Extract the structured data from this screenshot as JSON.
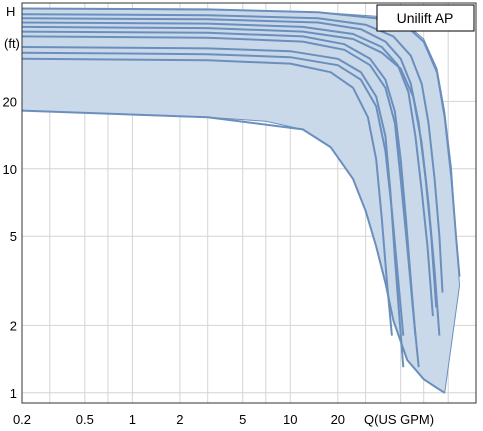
{
  "chart_data": {
    "type": "area",
    "title": "Unilift AP",
    "ylabel": "H",
    "ylabel_unit": "(ft)",
    "xlabel": "Q(US GPM)",
    "x_scale": "log",
    "y_scale": "log",
    "xlim": [
      0.2,
      150
    ],
    "ylim": [
      0.9,
      55
    ],
    "x_ticks": [
      {
        "value": 0.2,
        "label": "0.2"
      },
      {
        "value": 0.5,
        "label": "0.5"
      },
      {
        "value": 1,
        "label": "1"
      },
      {
        "value": 2,
        "label": "2"
      },
      {
        "value": 5,
        "label": "5"
      },
      {
        "value": 10,
        "label": "10"
      },
      {
        "value": 20,
        "label": "20"
      }
    ],
    "x_grid": [
      0.2,
      0.3,
      0.5,
      0.7,
      1,
      2,
      3,
      5,
      7,
      10,
      20,
      30,
      50,
      70,
      100
    ],
    "y_ticks": [
      {
        "value": 1,
        "label": "1"
      },
      {
        "value": 2,
        "label": "2"
      },
      {
        "value": 5,
        "label": "5"
      },
      {
        "value": 10,
        "label": "10"
      },
      {
        "value": 20,
        "label": "20"
      }
    ],
    "y_grid": [
      1,
      2,
      5,
      10,
      20
    ],
    "grid": true,
    "envelope": {
      "upper": [
        [
          0.2,
          52
        ],
        [
          1,
          51.5
        ],
        [
          5,
          51
        ],
        [
          15,
          50
        ],
        [
          35,
          48
        ],
        [
          55,
          44
        ],
        [
          70,
          38
        ],
        [
          85,
          28
        ],
        [
          95,
          18
        ],
        [
          105,
          10
        ],
        [
          110,
          6
        ],
        [
          115,
          4
        ],
        [
          118,
          3
        ]
      ],
      "lower": [
        [
          0.2,
          18.2
        ],
        [
          0.5,
          17.8
        ],
        [
          1,
          17.5
        ],
        [
          3,
          17
        ],
        [
          7,
          16.3
        ],
        [
          12,
          15
        ],
        [
          18,
          12.5
        ],
        [
          25,
          9
        ],
        [
          30,
          6.5
        ],
        [
          35,
          4.5
        ],
        [
          40,
          3.1
        ],
        [
          45,
          2.1
        ],
        [
          55,
          1.4
        ],
        [
          70,
          1.15
        ],
        [
          85,
          1.05
        ],
        [
          95,
          1.0
        ]
      ]
    },
    "series": [
      {
        "values": [
          [
            0.2,
            52
          ],
          [
            3,
            51.5
          ],
          [
            15,
            50
          ],
          [
            35,
            47
          ],
          [
            55,
            43
          ],
          [
            70,
            37
          ],
          [
            85,
            27
          ],
          [
            95,
            17
          ],
          [
            105,
            9
          ],
          [
            112,
            5
          ],
          [
            118,
            3.3
          ]
        ]
      },
      {
        "values": [
          [
            0.2,
            49
          ],
          [
            3,
            48.5
          ],
          [
            15,
            47
          ],
          [
            30,
            44
          ],
          [
            45,
            39
          ],
          [
            58,
            32
          ],
          [
            68,
            24
          ],
          [
            75,
            16
          ],
          [
            82,
            9
          ],
          [
            88,
            5
          ],
          [
            92,
            2.8
          ]
        ]
      },
      {
        "values": [
          [
            0.2,
            47
          ],
          [
            3,
            46.5
          ],
          [
            15,
            45
          ],
          [
            28,
            42
          ],
          [
            40,
            37
          ],
          [
            50,
            31
          ],
          [
            58,
            24
          ],
          [
            65,
            16
          ],
          [
            72,
            9
          ],
          [
            78,
            5
          ],
          [
            84,
            2.4
          ]
        ]
      },
      {
        "values": [
          [
            0.2,
            45
          ],
          [
            3,
            44.5
          ],
          [
            12,
            43
          ],
          [
            25,
            40
          ],
          [
            38,
            35
          ],
          [
            48,
            29
          ],
          [
            56,
            22
          ],
          [
            62,
            14
          ],
          [
            68,
            8
          ],
          [
            74,
            4.5
          ],
          [
            80,
            2.2
          ]
        ]
      },
      {
        "values": [
          [
            0.2,
            43
          ],
          [
            3,
            42.5
          ],
          [
            12,
            41
          ],
          [
            25,
            38
          ],
          [
            38,
            33
          ],
          [
            50,
            28
          ],
          [
            60,
            21
          ],
          [
            68,
            13
          ],
          [
            75,
            7
          ],
          [
            82,
            3.5
          ],
          [
            88,
            1.8
          ]
        ]
      },
      {
        "values": [
          [
            0.2,
            41
          ],
          [
            3,
            40.5
          ],
          [
            12,
            39
          ],
          [
            22,
            36
          ],
          [
            32,
            31
          ],
          [
            40,
            25
          ],
          [
            46,
            18
          ],
          [
            50,
            11
          ],
          [
            54,
            6
          ],
          [
            58,
            3.2
          ],
          [
            62,
            1.8
          ]
        ]
      },
      {
        "values": [
          [
            0.2,
            39
          ],
          [
            3,
            38.5
          ],
          [
            12,
            37
          ],
          [
            22,
            34
          ],
          [
            32,
            29
          ],
          [
            40,
            23
          ],
          [
            46,
            16
          ],
          [
            50,
            9
          ],
          [
            55,
            4.5
          ],
          [
            60,
            2.3
          ],
          [
            65,
            1.3
          ]
        ]
      },
      {
        "values": [
          [
            0.2,
            35
          ],
          [
            3,
            34.5
          ],
          [
            10,
            33.5
          ],
          [
            20,
            31
          ],
          [
            28,
            27
          ],
          [
            35,
            21
          ],
          [
            40,
            14
          ],
          [
            43,
            8
          ],
          [
            46,
            4
          ],
          [
            49,
            2.2
          ],
          [
            52,
            1.3
          ]
        ]
      },
      {
        "values": [
          [
            0.2,
            33
          ],
          [
            3,
            32.5
          ],
          [
            10,
            31.5
          ],
          [
            20,
            29
          ],
          [
            28,
            25
          ],
          [
            35,
            19
          ],
          [
            40,
            12
          ],
          [
            44,
            6.5
          ],
          [
            48,
            3.3
          ],
          [
            52,
            1.8
          ]
        ]
      },
      {
        "values": [
          [
            0.2,
            31
          ],
          [
            3,
            30.5
          ],
          [
            10,
            29.5
          ],
          [
            18,
            27
          ],
          [
            25,
            23
          ],
          [
            31,
            17
          ],
          [
            35,
            11
          ],
          [
            38,
            6
          ],
          [
            41,
            3.1
          ],
          [
            44,
            1.8
          ]
        ]
      },
      {
        "values": [
          [
            0.2,
            18.2
          ],
          [
            3,
            17
          ],
          [
            12,
            15
          ],
          [
            18,
            12.5
          ],
          [
            25,
            9
          ],
          [
            30,
            6.5
          ],
          [
            35,
            4.5
          ],
          [
            40,
            3.1
          ],
          [
            45,
            2.1
          ],
          [
            55,
            1.4
          ],
          [
            70,
            1.15
          ],
          [
            85,
            1.05
          ],
          [
            95,
            1.0
          ]
        ]
      }
    ],
    "fill_color": "#c9d9ea",
    "line_color": "#6b8fbd",
    "grid_color": "#d4d4d4",
    "frame_color": "#333333"
  }
}
